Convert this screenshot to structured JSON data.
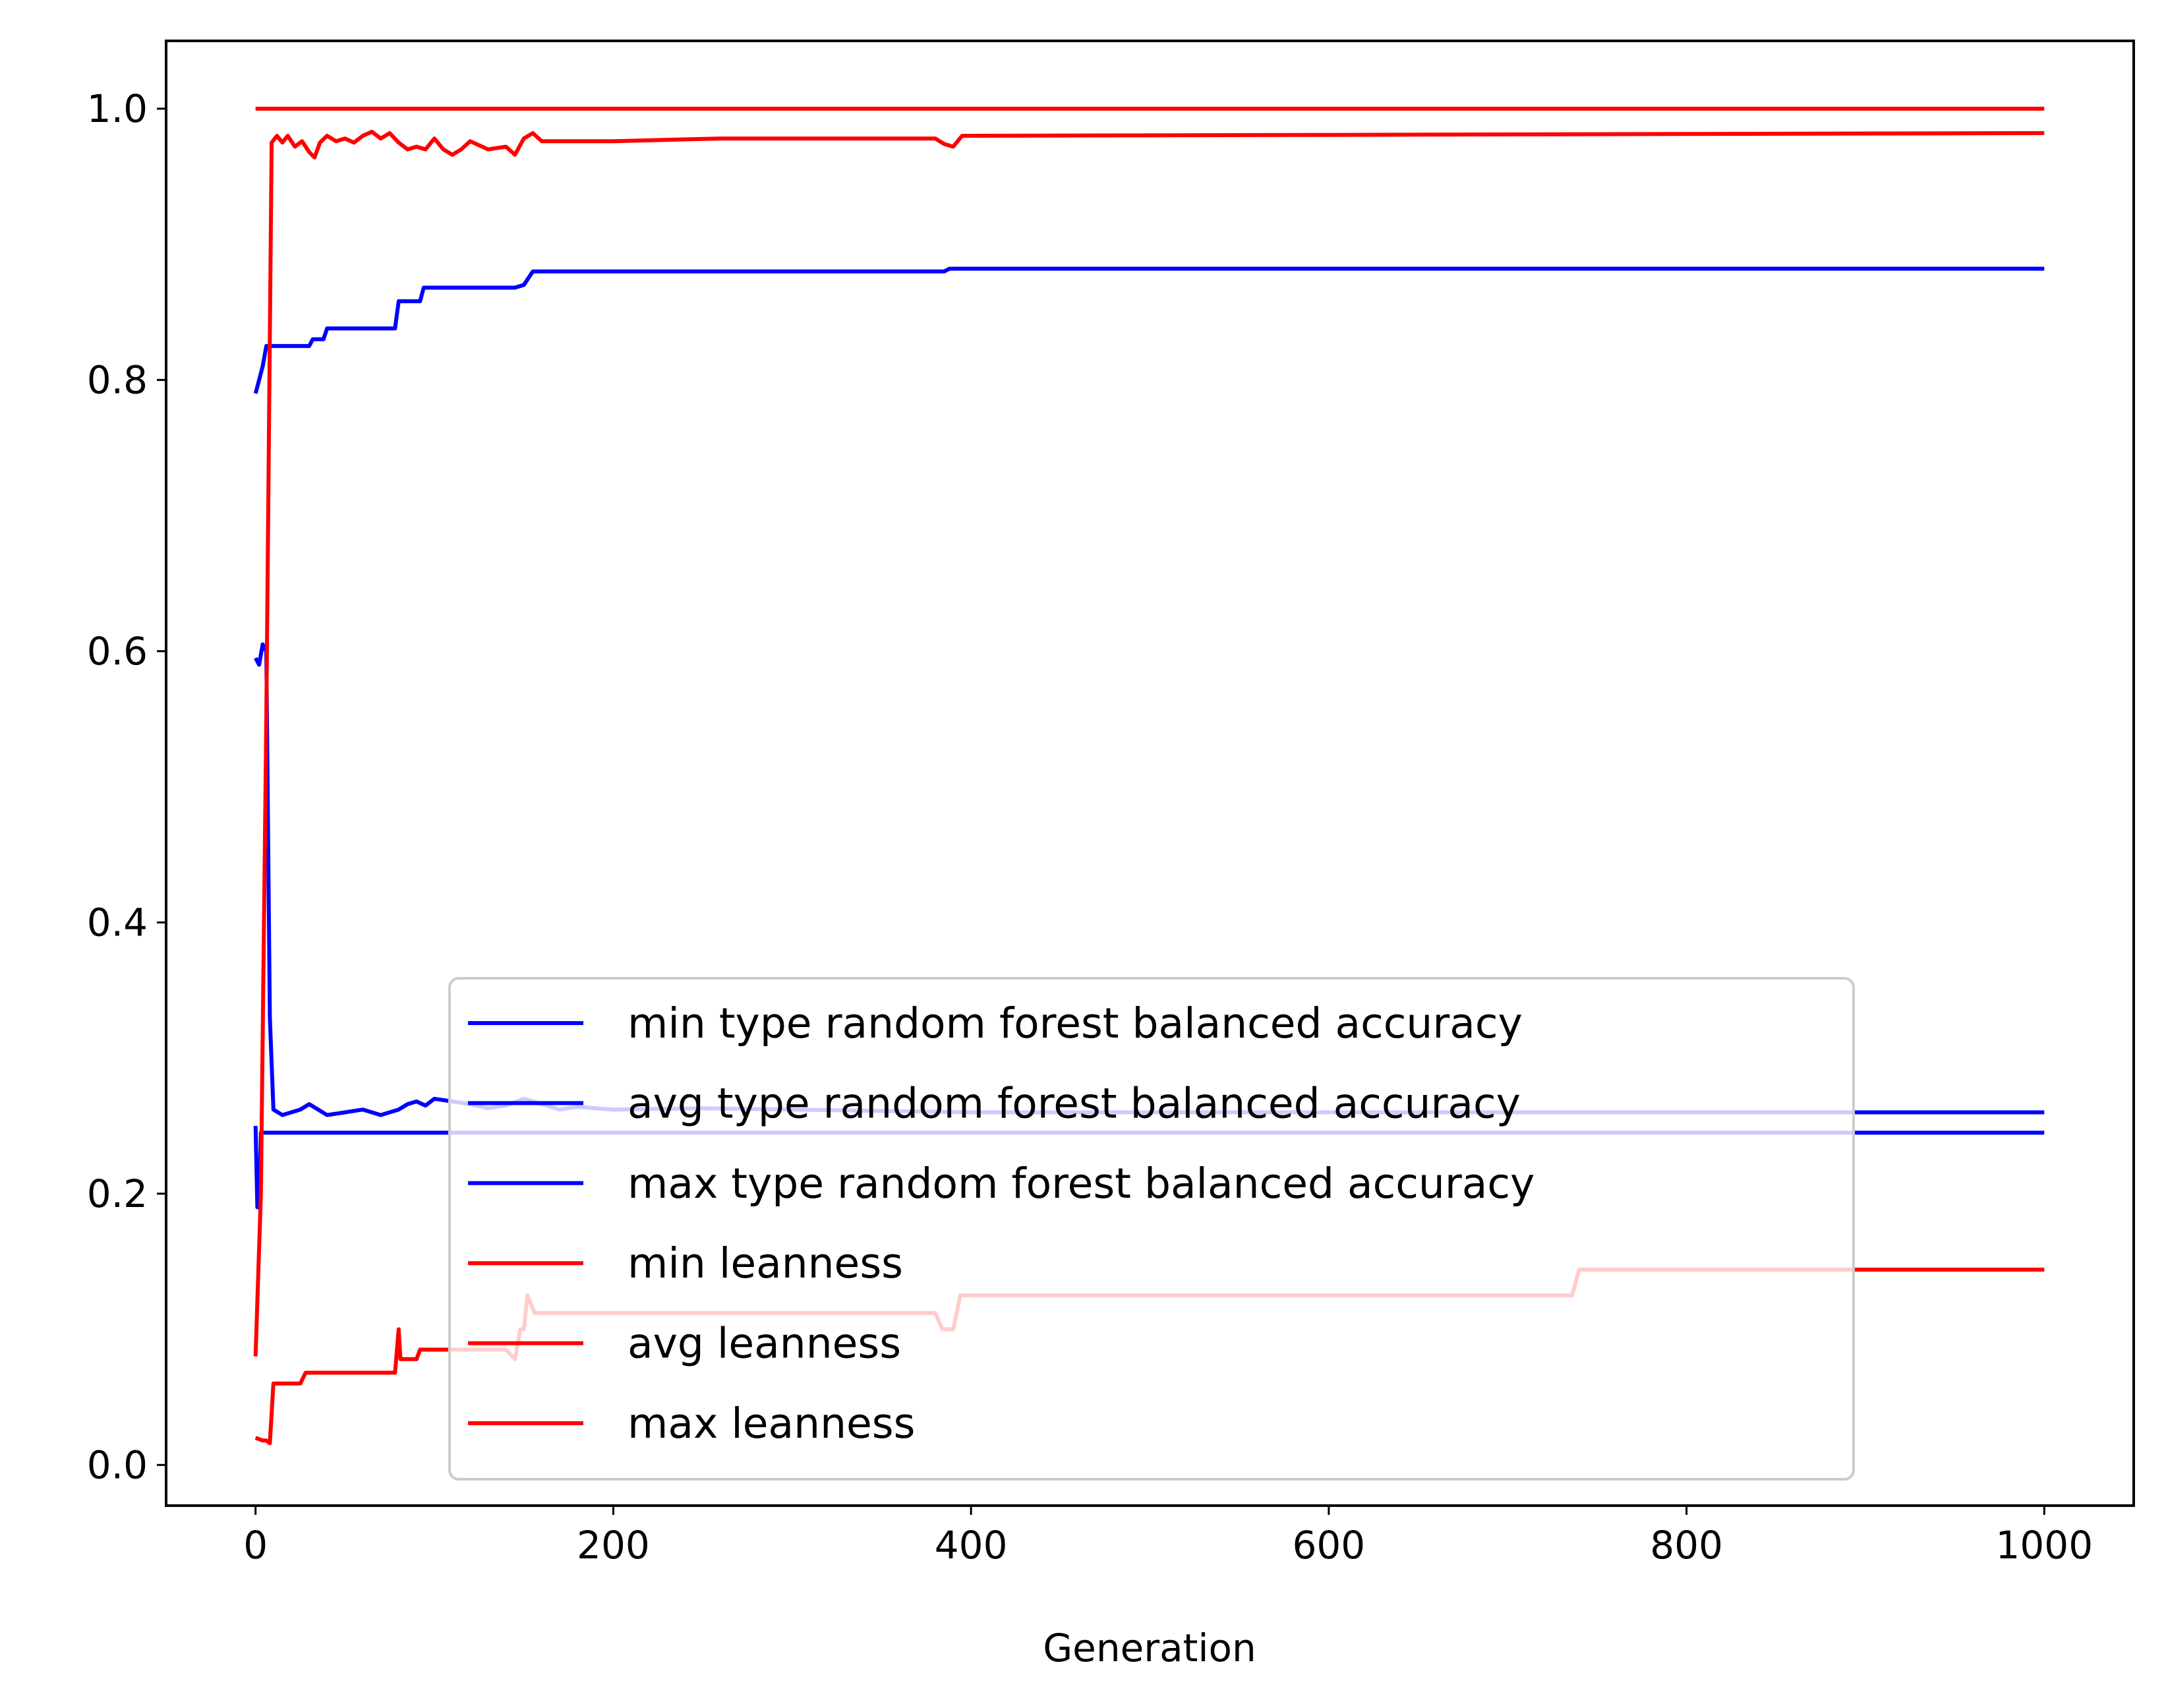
{
  "chart_data": {
    "type": "line",
    "title": "",
    "xlabel": "Generation",
    "ylabel": "",
    "xlim": [
      -50,
      1050
    ],
    "ylim": [
      -0.03,
      1.05
    ],
    "xticks": [
      "0",
      "200",
      "400",
      "600",
      "800",
      "1000"
    ],
    "yticks": [
      "0.0",
      "0.2",
      "0.4",
      "0.6",
      "0.8",
      "1.0"
    ],
    "grid": false,
    "legend_position": "lower center",
    "series": [
      {
        "name": "min type random forest balanced accuracy",
        "color": "#0000ff",
        "points": [
          [
            0,
            0.25
          ],
          [
            1,
            0.19
          ],
          [
            2,
            0.19
          ],
          [
            3,
            0.245
          ],
          [
            1000,
            0.245
          ]
        ]
      },
      {
        "name": "avg type random forest balanced accuracy",
        "color": "#0000ff",
        "points": [
          [
            0,
            0.595
          ],
          [
            2,
            0.59
          ],
          [
            4,
            0.605
          ],
          [
            6,
            0.6
          ],
          [
            8,
            0.33
          ],
          [
            10,
            0.262
          ],
          [
            15,
            0.258
          ],
          [
            20,
            0.26
          ],
          [
            25,
            0.262
          ],
          [
            30,
            0.266
          ],
          [
            35,
            0.262
          ],
          [
            40,
            0.258
          ],
          [
            50,
            0.26
          ],
          [
            60,
            0.262
          ],
          [
            70,
            0.258
          ],
          [
            80,
            0.262
          ],
          [
            85,
            0.266
          ],
          [
            90,
            0.268
          ],
          [
            95,
            0.265
          ],
          [
            100,
            0.27
          ],
          [
            110,
            0.268
          ],
          [
            120,
            0.266
          ],
          [
            130,
            0.263
          ],
          [
            140,
            0.265
          ],
          [
            150,
            0.27
          ],
          [
            160,
            0.266
          ],
          [
            170,
            0.262
          ],
          [
            180,
            0.264
          ],
          [
            200,
            0.262
          ],
          [
            250,
            0.263
          ],
          [
            300,
            0.262
          ],
          [
            400,
            0.26
          ],
          [
            1000,
            0.26
          ]
        ]
      },
      {
        "name": "max type random forest balanced accuracy",
        "color": "#0000ff",
        "points": [
          [
            0,
            0.79
          ],
          [
            2,
            0.8
          ],
          [
            4,
            0.81
          ],
          [
            6,
            0.825
          ],
          [
            30,
            0.825
          ],
          [
            32,
            0.83
          ],
          [
            38,
            0.83
          ],
          [
            40,
            0.838
          ],
          [
            78,
            0.838
          ],
          [
            80,
            0.858
          ],
          [
            92,
            0.858
          ],
          [
            94,
            0.868
          ],
          [
            145,
            0.868
          ],
          [
            150,
            0.87
          ],
          [
            155,
            0.88
          ],
          [
            385,
            0.88
          ],
          [
            388,
            0.882
          ],
          [
            1000,
            0.882
          ]
        ]
      },
      {
        "name": "min leanness",
        "color": "#ff0000",
        "points": [
          [
            0,
            0.02
          ],
          [
            4,
            0.018
          ],
          [
            6,
            0.018
          ],
          [
            8,
            0.016
          ],
          [
            10,
            0.06
          ],
          [
            25,
            0.06
          ],
          [
            28,
            0.068
          ],
          [
            78,
            0.068
          ],
          [
            80,
            0.1
          ],
          [
            81,
            0.078
          ],
          [
            90,
            0.078
          ],
          [
            92,
            0.085
          ],
          [
            140,
            0.085
          ],
          [
            145,
            0.078
          ],
          [
            148,
            0.1
          ],
          [
            150,
            0.1
          ],
          [
            152,
            0.125
          ],
          [
            156,
            0.112
          ],
          [
            380,
            0.112
          ],
          [
            384,
            0.1
          ],
          [
            390,
            0.1
          ],
          [
            394,
            0.125
          ],
          [
            736,
            0.125
          ],
          [
            740,
            0.144
          ],
          [
            1000,
            0.144
          ]
        ]
      },
      {
        "name": "avg leanness",
        "color": "#ff0000",
        "points": [
          [
            0,
            0.08
          ],
          [
            3,
            0.2
          ],
          [
            6,
            0.55
          ],
          [
            9,
            0.975
          ],
          [
            12,
            0.98
          ],
          [
            15,
            0.975
          ],
          [
            18,
            0.98
          ],
          [
            22,
            0.972
          ],
          [
            26,
            0.976
          ],
          [
            30,
            0.968
          ],
          [
            33,
            0.964
          ],
          [
            36,
            0.975
          ],
          [
            40,
            0.98
          ],
          [
            45,
            0.976
          ],
          [
            50,
            0.978
          ],
          [
            55,
            0.975
          ],
          [
            60,
            0.98
          ],
          [
            65,
            0.983
          ],
          [
            70,
            0.978
          ],
          [
            75,
            0.982
          ],
          [
            80,
            0.975
          ],
          [
            85,
            0.97
          ],
          [
            90,
            0.972
          ],
          [
            95,
            0.97
          ],
          [
            100,
            0.978
          ],
          [
            105,
            0.97
          ],
          [
            110,
            0.966
          ],
          [
            115,
            0.97
          ],
          [
            120,
            0.976
          ],
          [
            130,
            0.97
          ],
          [
            140,
            0.972
          ],
          [
            145,
            0.966
          ],
          [
            150,
            0.978
          ],
          [
            155,
            0.982
          ],
          [
            160,
            0.976
          ],
          [
            200,
            0.976
          ],
          [
            260,
            0.978
          ],
          [
            380,
            0.978
          ],
          [
            385,
            0.974
          ],
          [
            390,
            0.972
          ],
          [
            395,
            0.98
          ],
          [
            1000,
            0.982
          ]
        ]
      },
      {
        "name": "max leanness",
        "color": "#ff0000",
        "points": [
          [
            0,
            1.0
          ],
          [
            1000,
            1.0
          ]
        ]
      }
    ]
  }
}
